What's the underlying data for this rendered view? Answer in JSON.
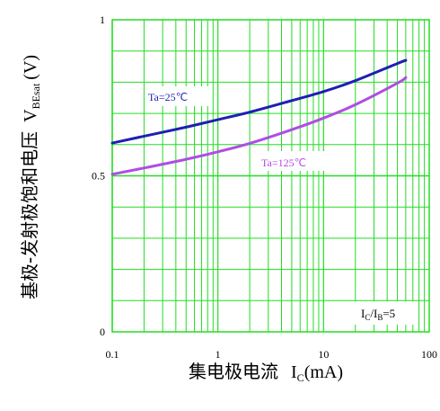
{
  "chart_data": {
    "type": "line",
    "title": "",
    "xlabel": "集电极电流",
    "xlabel_symbol": "I",
    "xlabel_sub": "C",
    "xlabel_unit": "(mA)",
    "ylabel": "基极-发射极饱和电压",
    "ylabel_symbol": "V",
    "ylabel_sub": "BEsat",
    "ylabel_unit": "(V)",
    "x_scale": "log",
    "xlim": [
      0.1,
      100
    ],
    "ylim": [
      0,
      1
    ],
    "x_ticks": [
      {
        "value": 0.1,
        "label": "0.1"
      },
      {
        "value": 1,
        "label": "1"
      },
      {
        "value": 10,
        "label": "10"
      },
      {
        "value": 100,
        "label": "100"
      }
    ],
    "y_ticks": [
      {
        "value": 0,
        "label": "0"
      },
      {
        "value": 0.5,
        "label": "0.5"
      },
      {
        "value": 1,
        "label": "1"
      }
    ],
    "grid": true,
    "condition_label": {
      "symbol1": "I",
      "sub1": "C",
      "sep": "/I",
      "sub2": "B",
      "tail": "=5"
    },
    "series": [
      {
        "name": "Ta=25℃",
        "color": "#1f1fb4",
        "x": [
          0.1,
          0.2,
          0.5,
          1,
          2,
          5,
          10,
          20,
          50,
          60
        ],
        "y": [
          0.605,
          0.627,
          0.656,
          0.68,
          0.704,
          0.741,
          0.77,
          0.805,
          0.86,
          0.87
        ]
      },
      {
        "name": "Ta=125℃",
        "color": "#b04ce6",
        "x": [
          0.1,
          0.2,
          0.5,
          1,
          2,
          5,
          10,
          20,
          50,
          60
        ],
        "y": [
          0.505,
          0.525,
          0.553,
          0.577,
          0.604,
          0.648,
          0.685,
          0.728,
          0.797,
          0.815
        ]
      }
    ]
  }
}
